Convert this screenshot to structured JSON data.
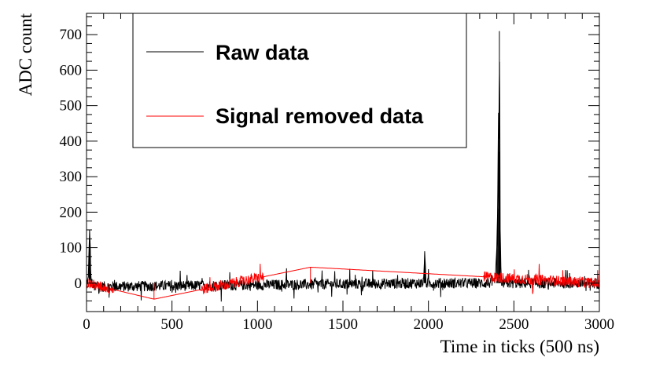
{
  "chart_data": {
    "type": "line",
    "xlabel": "Time in ticks (500 ns)",
    "ylabel": "ADC count",
    "xlim": [
      0,
      3000
    ],
    "ylim": [
      -80,
      760
    ],
    "x_ticks": [
      0,
      500,
      1000,
      1500,
      2000,
      2500,
      3000
    ],
    "y_ticks": [
      0,
      100,
      200,
      300,
      400,
      500,
      600,
      700
    ],
    "grid": false,
    "legend_position": "top-center",
    "series": [
      {
        "name": "Raw data",
        "color": "#000000",
        "noise_band": [
          -15,
          15
        ],
        "points": [
          [
            0,
            0
          ],
          [
            10,
            10
          ],
          [
            15,
            100
          ],
          [
            18,
            150
          ],
          [
            22,
            100
          ],
          [
            25,
            10
          ],
          [
            40,
            -10
          ],
          [
            1970,
            0
          ],
          [
            1975,
            40
          ],
          [
            1978,
            90
          ],
          [
            1982,
            50
          ],
          [
            1986,
            0
          ],
          [
            2390,
            0
          ],
          [
            2400,
            100
          ],
          [
            2405,
            210
          ],
          [
            2410,
            480
          ],
          [
            2413,
            370
          ],
          [
            2415,
            710
          ],
          [
            2418,
            450
          ],
          [
            2420,
            150
          ],
          [
            2425,
            20
          ],
          [
            2432,
            -10
          ],
          [
            2440,
            0
          ],
          [
            3000,
            0
          ]
        ]
      },
      {
        "name": "Signal removed data",
        "color": "#ff0000",
        "noise_band": [
          -15,
          15
        ],
        "points": [
          [
            0,
            0
          ],
          [
            395,
            -45
          ],
          [
            1310,
            45
          ],
          [
            3000,
            0
          ]
        ]
      }
    ]
  }
}
